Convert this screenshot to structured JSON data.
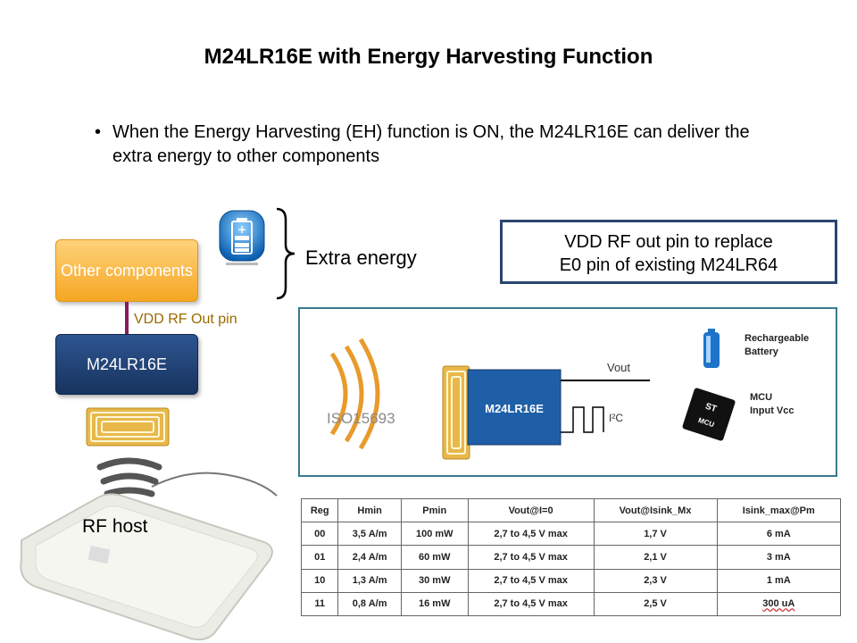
{
  "title": "M24LR16E with Energy Harvesting Function",
  "bullet": {
    "marker": "•",
    "text": "When the Energy Harvesting (EH) function is ON, the M24LR16E can deliver the extra energy to other components"
  },
  "diagram": {
    "other_components": "Other components",
    "chip": "M24LR16E",
    "vdd_pin_label": "VDD RF Out pin",
    "extra_energy": "Extra energy",
    "rf_host": "RF host",
    "battery_icon_label": "+"
  },
  "note_box": {
    "line1": "VDD RF out pin to replace",
    "line2": "E0 pin of existing M24LR64"
  },
  "schematic": {
    "protocol": "ISO15693",
    "chip": "M24LR16E",
    "vout": "Vout",
    "i2c": "I²C",
    "battery": "Rechargeable Battery",
    "mcu": "MCU Input Vcc",
    "mcu_chip_label": "MCU",
    "mcu_logo": "ST"
  },
  "table": {
    "headers": [
      "Reg",
      "Hmin",
      "Pmin",
      "Vout@I=0",
      "Vout@Isink_Mx",
      "Isink_max@Pm"
    ],
    "rows": [
      [
        "00",
        "3,5 A/m",
        "100 mW",
        "2,7 to 4,5 V max",
        "1,7 V",
        "6 mA"
      ],
      [
        "01",
        "2,4 A/m",
        "60 mW",
        "2,7 to 4,5 V max",
        "2,1 V",
        "3 mA"
      ],
      [
        "10",
        "1,3 A/m",
        "30 mW",
        "2,7 to 4,5 V max",
        "2,3 V",
        "1 mA"
      ],
      [
        "11",
        "0,8 A/m",
        "16 mW",
        "2,7 to 4,5 V max",
        "2,5 V",
        "300 uA"
      ]
    ]
  },
  "colors": {
    "orange_box": "#f5a623",
    "blue_box": "#1f3f73",
    "vdd_line": "#8b1a5e",
    "vdd_label": "#9a6a00",
    "coil_gold": "#e8b84a"
  }
}
